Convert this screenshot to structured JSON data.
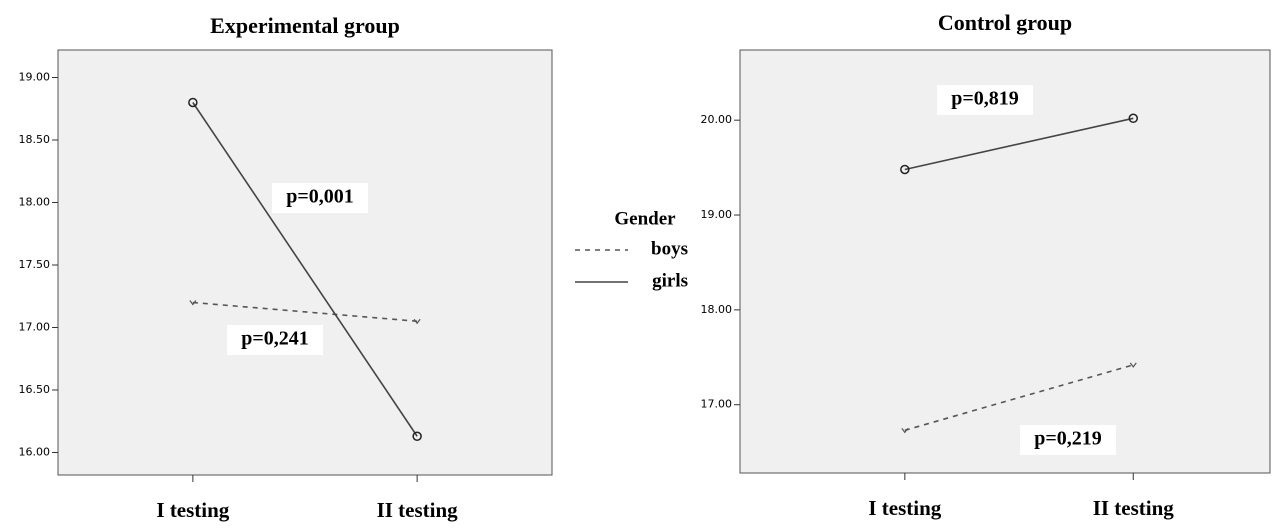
{
  "legend": {
    "title": "Gender"
  },
  "chart_data": [
    {
      "type": "line",
      "title": "Experimental group",
      "categories": [
        "I testing",
        "II testing"
      ],
      "series": [
        {
          "name": "boys",
          "color": "#555555",
          "dashed": true,
          "values": [
            17.2,
            17.05
          ]
        },
        {
          "name": "girls",
          "color": "#444444",
          "dashed": false,
          "values": [
            18.8,
            16.13
          ]
        }
      ],
      "ylim": [
        15.82,
        19.22
      ],
      "yticks": [
        {
          "value": 16,
          "label": "16.00"
        },
        {
          "value": 16.5,
          "label": "16.50"
        },
        {
          "value": 17,
          "label": "17.00"
        },
        {
          "value": 17.5,
          "label": "17.50"
        },
        {
          "value": 18,
          "label": "18.00"
        },
        {
          "value": 18.5,
          "label": "18.50"
        },
        {
          "value": 19,
          "label": "19.00"
        }
      ],
      "annotations": [
        "p=0,001",
        "p=0,241"
      ]
    },
    {
      "type": "line",
      "title": "Control group",
      "categories": [
        "I testing",
        "II testing"
      ],
      "series": [
        {
          "name": "boys",
          "color": "#555555",
          "dashed": true,
          "values": [
            16.73,
            17.42
          ]
        },
        {
          "name": "girls",
          "color": "#444444",
          "dashed": false,
          "values": [
            19.48,
            20.02
          ]
        }
      ],
      "ylim": [
        16.28,
        20.74
      ],
      "yticks": [
        {
          "value": 17,
          "label": "17.00"
        },
        {
          "value": 18,
          "label": "18.00"
        },
        {
          "value": 19,
          "label": "19.00"
        },
        {
          "value": 20,
          "label": "20.00"
        }
      ],
      "annotations": [
        "p=0,819",
        "p=0,219"
      ]
    }
  ]
}
